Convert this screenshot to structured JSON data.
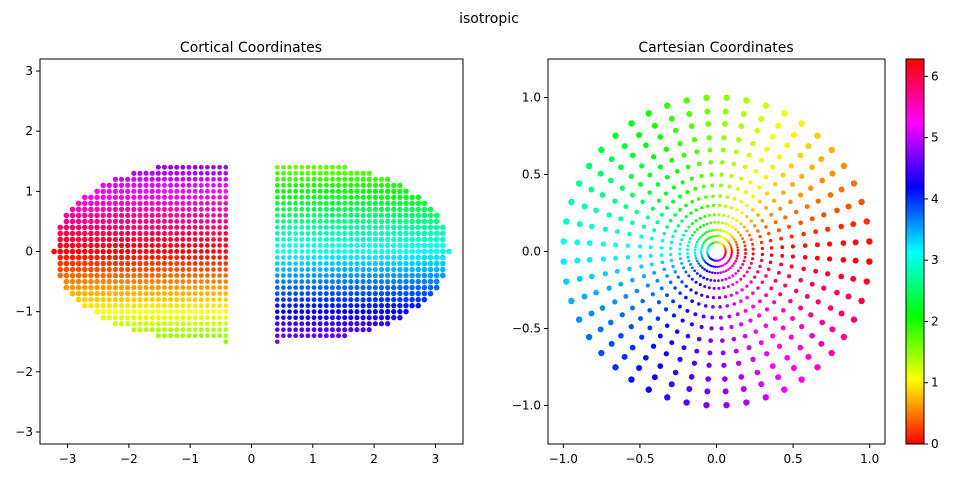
{
  "figure": {
    "suptitle": "isotropic"
  },
  "chart_data": [
    {
      "type": "scatter",
      "title": "Cortical Coordinates",
      "xlabel": "",
      "ylabel": "",
      "xlim": [
        -3.45,
        3.45
      ],
      "ylim": [
        -3.2,
        3.2
      ],
      "xticks": [
        -3,
        -2,
        -1,
        0,
        1,
        2,
        3
      ],
      "yticks": [
        -3,
        -2,
        -1,
        0,
        1,
        2,
        3
      ],
      "grid": false,
      "color_by": "polar angle (0 to 2π)",
      "description": "Two half-disc clusters of points (left hemifield x from about -3.25 to -0.4, right hemifield x from about 0.4 to 3.2), each extending y from about -1.5 to 1.5, colored by visual-field polar angle"
    },
    {
      "type": "scatter",
      "title": "Cartesian Coordinates",
      "xlabel": "",
      "ylabel": "",
      "xlim": [
        -1.1,
        1.1
      ],
      "ylim": [
        -1.25,
        1.25
      ],
      "xticks": [
        -1.0,
        -0.5,
        0.0,
        0.5,
        1.0
      ],
      "yticks": [
        -1.0,
        -0.5,
        0.0,
        0.5,
        1.0
      ],
      "grid": false,
      "color_by": "polar angle (0 to 2π)",
      "description": "Points on concentric rings of radius up to 1.0 arranged in radial spokes, colored by polar angle"
    }
  ],
  "colorbar": {
    "colormap": "hsv",
    "min": 0,
    "max": 6.2832,
    "ticks": [
      0,
      1,
      2,
      3,
      4,
      5,
      6
    ]
  }
}
